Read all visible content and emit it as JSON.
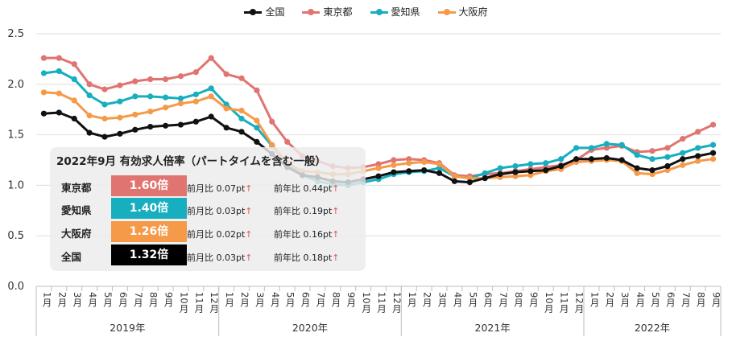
{
  "legend": [
    {
      "name": "全国",
      "color": "#111111"
    },
    {
      "name": "東京都",
      "color": "#e07470"
    },
    {
      "name": "愛知県",
      "color": "#17aebf"
    },
    {
      "name": "大阪府",
      "color": "#f59a48"
    }
  ],
  "panel": {
    "title": "2022年9月 有効求人倍率（パートタイムを含む一般）",
    "rows": [
      {
        "name": "東京都",
        "value": "1.60倍",
        "color": "#e07470",
        "mom": "前月比 0.07pt",
        "yoy": "前年比 0.44pt",
        "arrow": "↑"
      },
      {
        "name": "愛知県",
        "value": "1.40倍",
        "color": "#17aebf",
        "mom": "前月比 0.03pt",
        "yoy": "前年比 0.19pt",
        "arrow": "↑"
      },
      {
        "name": "大阪府",
        "value": "1.26倍",
        "color": "#f59a48",
        "mom": "前月比 0.02pt",
        "yoy": "前年比 0.16pt",
        "arrow": "↑"
      },
      {
        "name": "全国",
        "value": "1.32倍",
        "color": "#000000",
        "mom": "前月比 0.03pt",
        "yoy": "前年比 0.18pt",
        "arrow": "↑"
      }
    ]
  },
  "chart_data": {
    "type": "line",
    "ylim": [
      0,
      2.5
    ],
    "yticks": [
      "0.0",
      "0.5",
      "1.0",
      "1.5",
      "2.0",
      "2.5"
    ],
    "grid": true,
    "legend_position": "top",
    "year_labels": [
      "2019年",
      "2020年",
      "2021年",
      "2022年"
    ],
    "x": [
      "1月",
      "2月",
      "3月",
      "4月",
      "5月",
      "6月",
      "7月",
      "8月",
      "9月",
      "10月",
      "11月",
      "12月",
      "1月",
      "2月",
      "3月",
      "4月",
      "5月",
      "6月",
      "7月",
      "8月",
      "9月",
      "10月",
      "11月",
      "12月",
      "1月",
      "2月",
      "3月",
      "4月",
      "5月",
      "6月",
      "7月",
      "8月",
      "9月",
      "10月",
      "11月",
      "12月",
      "1月",
      "2月",
      "3月",
      "4月",
      "5月",
      "6月",
      "7月",
      "8月",
      "9月"
    ],
    "series": [
      {
        "name": "東京都",
        "color": "#e07470",
        "values": [
          2.26,
          2.26,
          2.2,
          2.0,
          1.95,
          1.99,
          2.03,
          2.05,
          2.05,
          2.08,
          2.12,
          2.26,
          2.1,
          2.06,
          1.94,
          1.63,
          1.43,
          1.29,
          1.24,
          1.19,
          1.17,
          1.18,
          1.21,
          1.25,
          1.26,
          1.25,
          1.22,
          1.1,
          1.09,
          1.11,
          1.12,
          1.14,
          1.16,
          1.18,
          1.2,
          1.25,
          1.35,
          1.37,
          1.39,
          1.33,
          1.34,
          1.37,
          1.46,
          1.53,
          1.6
        ]
      },
      {
        "name": "愛知県",
        "color": "#17aebf",
        "values": [
          2.11,
          2.13,
          2.05,
          1.89,
          1.8,
          1.83,
          1.88,
          1.88,
          1.87,
          1.86,
          1.9,
          1.96,
          1.8,
          1.66,
          1.57,
          1.39,
          1.22,
          1.1,
          1.04,
          1.01,
          1.0,
          1.03,
          1.06,
          1.11,
          1.13,
          1.14,
          1.17,
          1.09,
          1.07,
          1.12,
          1.17,
          1.19,
          1.21,
          1.22,
          1.26,
          1.37,
          1.37,
          1.41,
          1.4,
          1.3,
          1.26,
          1.28,
          1.32,
          1.37,
          1.4
        ]
      },
      {
        "name": "大阪府",
        "color": "#f59a48",
        "values": [
          1.92,
          1.91,
          1.84,
          1.69,
          1.66,
          1.67,
          1.7,
          1.73,
          1.77,
          1.81,
          1.83,
          1.88,
          1.76,
          1.74,
          1.64,
          1.4,
          1.22,
          1.14,
          1.13,
          1.11,
          1.11,
          1.14,
          1.17,
          1.2,
          1.22,
          1.23,
          1.21,
          1.09,
          1.07,
          1.07,
          1.08,
          1.09,
          1.1,
          1.14,
          1.16,
          1.23,
          1.24,
          1.25,
          1.24,
          1.12,
          1.11,
          1.15,
          1.2,
          1.24,
          1.26
        ]
      },
      {
        "name": "全国",
        "color": "#111111",
        "values": [
          1.71,
          1.72,
          1.66,
          1.52,
          1.48,
          1.51,
          1.55,
          1.58,
          1.59,
          1.6,
          1.63,
          1.68,
          1.57,
          1.53,
          1.43,
          1.31,
          1.18,
          1.1,
          1.08,
          1.04,
          1.03,
          1.06,
          1.09,
          1.13,
          1.14,
          1.15,
          1.12,
          1.04,
          1.03,
          1.07,
          1.11,
          1.13,
          1.14,
          1.15,
          1.19,
          1.26,
          1.26,
          1.27,
          1.25,
          1.17,
          1.15,
          1.19,
          1.26,
          1.29,
          1.32
        ]
      }
    ]
  }
}
